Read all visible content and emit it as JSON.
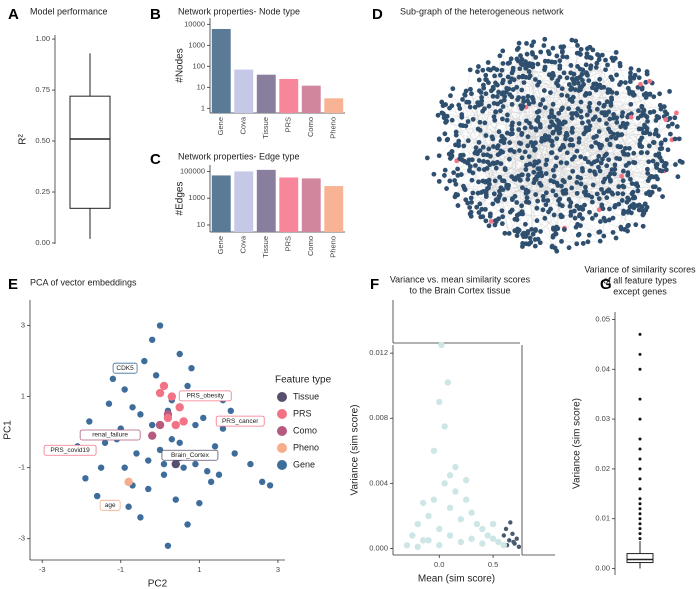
{
  "chart_data": [
    {
      "type": "box",
      "panel": "A",
      "title": "Model performance",
      "ylabel": "R²",
      "box": {
        "low": 0.02,
        "q1": 0.17,
        "median": 0.51,
        "q3": 0.72,
        "high": 0.93,
        "outliers": []
      },
      "color": "#ffffff",
      "ylim": [
        -0.005,
        1.02
      ],
      "yticks": [
        {
          "value": 0,
          "label": "0.00"
        },
        {
          "value": 0.25,
          "label": "0.25"
        },
        {
          "value": 0.5,
          "label": "0.50"
        },
        {
          "value": 0.75,
          "label": "0.75"
        },
        {
          "value": 1,
          "label": "1.00"
        }
      ]
    },
    {
      "type": "bar",
      "panel": "B",
      "title": "Network properties- Node type",
      "ylabel": "#Nodes",
      "log": true,
      "categories": [
        "Gene",
        "Cova",
        "Tissue",
        "PRS",
        "Como",
        "Pheno"
      ],
      "values": [
        6000,
        70,
        40,
        25,
        12,
        3
      ],
      "colors": [
        "#5b7a96",
        "#c6c8e8",
        "#8a7e9e",
        "#f7869a",
        "#d1869d",
        "#f7b393"
      ],
      "ylim": [
        0.6,
        20000
      ],
      "yticks": [
        1,
        10,
        100,
        1000,
        10000
      ]
    },
    {
      "type": "bar",
      "panel": "C",
      "title": "Network properties- Edge type",
      "ylabel": "#Edges",
      "log": true,
      "categories": [
        "Gene",
        "Cova",
        "Tissue",
        "PRS",
        "Como",
        "Pheno"
      ],
      "values": [
        50000,
        100000,
        130000,
        35000,
        30000,
        8000
      ],
      "colors": [
        "#5b7a96",
        "#c6c8e8",
        "#8a7e9e",
        "#f7869a",
        "#d1869d",
        "#f7b393"
      ],
      "ylim": [
        3,
        300000
      ],
      "yticks": [
        10,
        1000,
        100000
      ]
    },
    {
      "type": "network",
      "panel": "D",
      "title": "Sub-graph of the heterogeneous network",
      "node_color": "#2f4f6f",
      "highlight_color": "#f27386",
      "edge_color": "#bbbbbb"
    },
    {
      "type": "scatter",
      "panel": "E",
      "title": "PCA of vector embeddings",
      "xlabel": "PC2",
      "ylabel": "PC1",
      "legend_title": "Feature type",
      "series": [
        {
          "name": "Tissue",
          "color": "#5a4e6e",
          "x": [
            0.5,
            0.4
          ],
          "y": [
            -0.7,
            -0.9
          ]
        },
        {
          "name": "PRS",
          "color": "#f27386",
          "x": [
            0.1,
            0.3,
            0.5,
            0.2,
            0.6,
            0.0,
            0.4
          ],
          "y": [
            1.3,
            1.0,
            0.7,
            0.4,
            0.3,
            1.1,
            0.2
          ]
        },
        {
          "name": "Como",
          "color": "#b45b7f",
          "x": [
            0.0,
            -0.2,
            0.2
          ],
          "y": [
            0.2,
            -0.1,
            0.5
          ]
        },
        {
          "name": "Pheno",
          "color": "#f7ad8c",
          "x": [
            -0.8
          ],
          "y": [
            -1.4
          ]
        },
        {
          "name": "Gene",
          "color": "#3e6d9c",
          "x": [
            -2.1,
            -1.8,
            -1.5,
            -1.3,
            -1.1,
            -0.9,
            -0.7,
            -0.5,
            -0.3,
            -0.1,
            0.1,
            0.3,
            0.5,
            0.7,
            0.9,
            1.1,
            1.3,
            1.6,
            1.9,
            2.3,
            -1.6,
            -1.2,
            -0.8,
            -0.4,
            0,
            0.4,
            0.8,
            1.2,
            1.6,
            -1.0,
            -0.6,
            -0.2,
            0.2,
            0.6,
            1.0,
            1.4,
            -1.4,
            -0.9,
            -0.3,
            0.3,
            0.9,
            1.5,
            -0.5,
            0.5,
            0,
            -0.7,
            0.7,
            2.6,
            2.8,
            -2.6,
            -0.2,
            0.2,
            1.8,
            -1.9,
            0.1
          ],
          "y": [
            -0.4,
            0.3,
            -1.0,
            0.8,
            -0.2,
            1.2,
            -1.5,
            0.5,
            -0.8,
            1.6,
            -1.2,
            0.9,
            -0.3,
            1.3,
            -0.9,
            0.4,
            -1.4,
            0.1,
            -0.6,
            -0.9,
            -1.8,
            1.5,
            -2.1,
            2.0,
            -0.5,
            -1.9,
            1.8,
            -1.1,
            0.9,
            0.1,
            -0.6,
            0.2,
            0.6,
            -1.0,
            -2.0,
            -0.4,
            -0.3,
            -1.0,
            -1.6,
            -0.2,
            0.2,
            -1.2,
            -2.4,
            2.2,
            3.0,
            0.7,
            -2.6,
            -1.4,
            -1.5,
            -0.5,
            2.6,
            -3.2,
            0.6,
            -1.3,
            -0.9
          ]
        }
      ],
      "annotations": [
        {
          "text": "CDK5",
          "x": -0.89,
          "y": 1.8,
          "color": "#3e6d9c"
        },
        {
          "text": "PRS_obesity",
          "x": 1.15,
          "y": 1.02,
          "color": "#f27386"
        },
        {
          "text": "renal_failure",
          "x": -1.27,
          "y": -0.08,
          "color": "#b45b7f"
        },
        {
          "text": "PRS_cancer",
          "x": 2.04,
          "y": 0.31,
          "color": "#f27386"
        },
        {
          "text": "PRS_covid19",
          "x": -2.29,
          "y": -0.51,
          "color": "#f27386"
        },
        {
          "text": "Brain_Cortex",
          "x": 0.76,
          "y": -0.65,
          "color": "#5a4e6e"
        },
        {
          "text": "age",
          "x": -1.27,
          "y": -2.06,
          "color": "#f7ad8c"
        }
      ],
      "xlim": [
        -3.31,
        3.18
      ],
      "ylim": [
        -3.6,
        3.72
      ],
      "xticks": [
        -3,
        -1,
        1,
        3
      ],
      "yticks": [
        -3,
        -1,
        1,
        3
      ]
    },
    {
      "type": "scatter",
      "panel": "F",
      "title": [
        "Variance vs. mean similarity scores",
        "to the Brain Cortex tissue"
      ],
      "xlabel": "Mean (sim score)",
      "ylabel": "Variance (sim score)",
      "series": [
        {
          "color": "#cfe6e6",
          "x": [
            -0.3,
            -0.25,
            -0.2,
            -0.15,
            -0.1,
            -0.05,
            0,
            0.05,
            0.1,
            0.15,
            0.2,
            0.25,
            0.3,
            0.35,
            0.4,
            0.45,
            0.5,
            0.55,
            0.6,
            -0.2,
            -0.1,
            0,
            0.1,
            0.2,
            0.3,
            0.4,
            -0.05,
            0.05,
            0.15,
            0.0,
            0.1,
            -0.15,
            0.25,
            0.5,
            0.02,
            0.08
          ],
          "y": [
            0.0002,
            0.0008,
            0.0015,
            0.0005,
            0.002,
            0.003,
            0.0012,
            0.004,
            0.0025,
            0.0035,
            0.0018,
            0.003,
            0.0022,
            0.0015,
            0.0012,
            0.0008,
            0.0006,
            0.0004,
            0.0002,
            0.0001,
            0.0005,
            0.0002,
            0.0008,
            0.0004,
            0.0006,
            0.0003,
            0.006,
            0.0075,
            0.005,
            0.009,
            0.0045,
            0.0028,
            0.0042,
            0.0015,
            0.0125,
            0.0102
          ]
        },
        {
          "color": "#4a5a6e",
          "x": [
            0.6,
            0.62,
            0.65,
            0.68,
            0.7,
            0.72,
            0.66,
            0.74,
            0.63,
            0.69
          ],
          "y": [
            0.0008,
            0.0012,
            0.0005,
            0.0009,
            0.0003,
            0.0006,
            0.0016,
            0.0001,
            0.0002,
            0.0004
          ]
        }
      ],
      "xlim": [
        -0.43,
        0.75
      ],
      "ylim": [
        -0.0004,
        0.0125
      ],
      "xticks": [
        {
          "value": 0,
          "label": "0.0"
        },
        {
          "value": 0.5,
          "label": "0.5"
        }
      ],
      "yticks": [
        {
          "value": 0,
          "label": "0.000"
        },
        {
          "value": 0.004,
          "label": "0.004"
        },
        {
          "value": 0.008,
          "label": "0.008"
        },
        {
          "value": 0.012,
          "label": "0.012"
        }
      ]
    },
    {
      "type": "box",
      "panel": "G",
      "title": [
        "Variance of similarity scores",
        "of all feature types",
        "except genes"
      ],
      "ylabel": "Variance (sim score)",
      "box": {
        "low": 0.0,
        "q1": 0.0012,
        "median": 0.0018,
        "q3": 0.003,
        "high": 0.0055,
        "outliers": [
          0.006,
          0.007,
          0.008,
          0.009,
          0.01,
          0.011,
          0.012,
          0.013,
          0.014,
          0.016,
          0.018,
          0.02,
          0.022,
          0.024,
          0.026,
          0.03,
          0.034,
          0.04,
          0.043,
          0.047
        ]
      },
      "color": "#ffffff",
      "ylim": [
        -0.0013,
        0.0515
      ],
      "yticks": [
        {
          "value": 0,
          "label": "0.00"
        },
        {
          "value": 0.01,
          "label": "0.01"
        },
        {
          "value": 0.02,
          "label": "0.02"
        },
        {
          "value": 0.03,
          "label": "0.03"
        },
        {
          "value": 0.04,
          "label": "0.04"
        },
        {
          "value": 0.05,
          "label": "0.05"
        }
      ]
    }
  ]
}
